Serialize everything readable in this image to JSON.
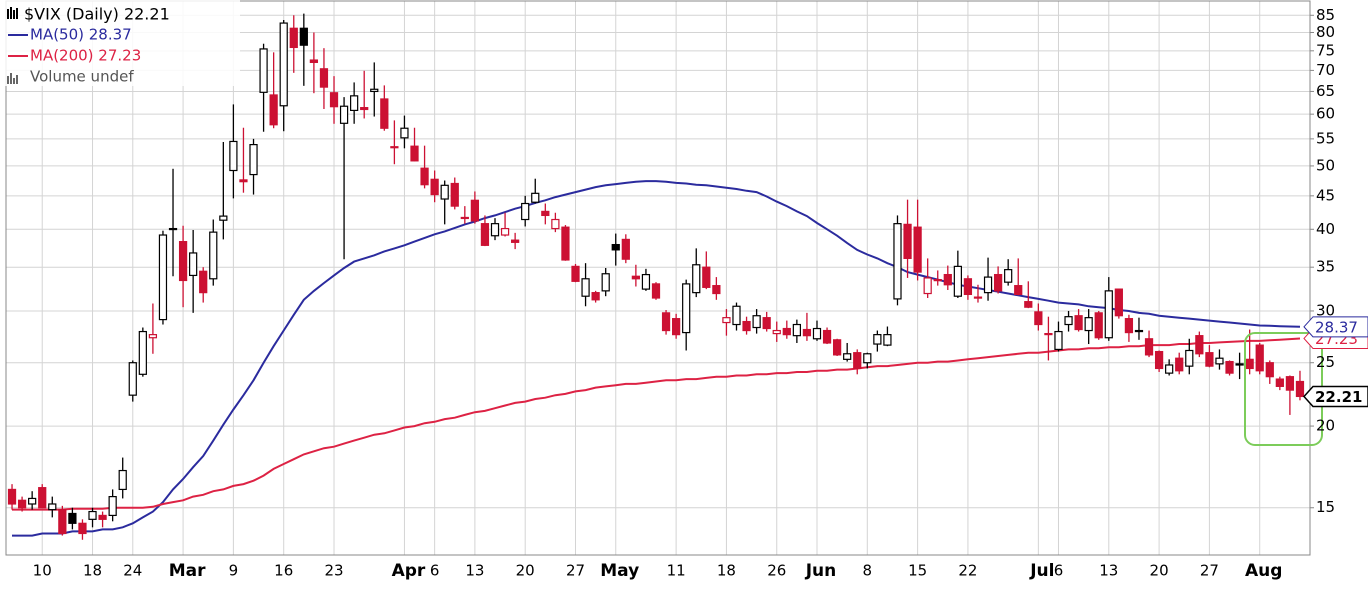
{
  "chart_data": {
    "type": "candlestick",
    "title": "$VIX (Daily) 22.21",
    "volume_label": "Volume undef",
    "log_scale": true,
    "grid": true,
    "legend": "top-left",
    "up_color": "#000000",
    "down_color": "#cc1133",
    "ylim": [
      12.7,
      89.7
    ],
    "yticks": [
      15,
      20,
      25,
      30,
      35,
      40,
      45,
      50,
      55,
      60,
      65,
      70,
      75,
      80,
      85
    ],
    "last_label": "22.21",
    "categories": [
      null,
      null,
      null,
      "10",
      null,
      null,
      null,
      null,
      "18",
      null,
      null,
      null,
      "24",
      null,
      null,
      null,
      null,
      "Mar",
      null,
      null,
      null,
      null,
      "9",
      null,
      null,
      null,
      null,
      "16",
      null,
      null,
      null,
      null,
      "23",
      null,
      null,
      null,
      null,
      null,
      null,
      "Apr",
      null,
      null,
      "6",
      null,
      null,
      null,
      "13",
      null,
      null,
      null,
      null,
      "20",
      null,
      null,
      null,
      null,
      "27",
      null,
      null,
      null,
      "May",
      null,
      null,
      null,
      null,
      null,
      "11",
      null,
      null,
      null,
      null,
      "18",
      null,
      null,
      null,
      null,
      "26",
      null,
      null,
      null,
      "Jun",
      null,
      null,
      null,
      null,
      "8",
      null,
      null,
      null,
      null,
      "15",
      null,
      null,
      null,
      null,
      "22",
      null,
      null,
      null,
      null,
      null,
      null,
      "Jul",
      null,
      "6",
      null,
      null,
      null,
      null,
      "13",
      null,
      null,
      null,
      null,
      "20",
      null,
      null,
      null,
      null,
      "27",
      null,
      null,
      null,
      null,
      "Aug",
      null,
      null,
      null,
      null
    ],
    "ohlc": [
      [
        16.0,
        16.3,
        14.9,
        15.2
      ],
      [
        15.4,
        15.6,
        14.8,
        15.0
      ],
      [
        15.2,
        15.9,
        14.9,
        15.5
      ],
      [
        16.1,
        16.3,
        15.0,
        15.0
      ],
      [
        14.9,
        15.6,
        14.5,
        15.2
      ],
      [
        14.9,
        15.1,
        13.6,
        13.7
      ],
      [
        14.7,
        15.0,
        13.9,
        14.2
      ],
      [
        14.2,
        14.4,
        13.4,
        13.7
      ],
      [
        14.4,
        15.0,
        14.0,
        14.8
      ],
      [
        14.6,
        14.8,
        14.0,
        14.4
      ],
      [
        14.6,
        16.0,
        14.3,
        15.6
      ],
      [
        16.0,
        17.9,
        15.5,
        17.1
      ],
      [
        22.3,
        25.2,
        21.8,
        25.0
      ],
      [
        24.0,
        28.3,
        23.8,
        27.9
      ],
      [
        27.3,
        30.8,
        25.8,
        27.6
      ],
      [
        29.1,
        39.8,
        28.6,
        39.2
      ],
      [
        40.0,
        49.5,
        33.9,
        40.1
      ],
      [
        38.3,
        40.5,
        30.4,
        33.4
      ],
      [
        34.0,
        39.9,
        29.8,
        36.8
      ],
      [
        34.5,
        35.0,
        30.9,
        32.0
      ],
      [
        33.6,
        41.4,
        32.8,
        39.6
      ],
      [
        41.3,
        54.4,
        38.6,
        41.9
      ],
      [
        49.2,
        62.1,
        44.6,
        54.5
      ],
      [
        47.6,
        57.2,
        45.5,
        47.3
      ],
      [
        48.5,
        55.0,
        45.2,
        53.9
      ],
      [
        64.8,
        76.9,
        56.4,
        75.5
      ],
      [
        64.2,
        74.6,
        57.1,
        57.8
      ],
      [
        61.8,
        83.6,
        56.5,
        82.7
      ],
      [
        81.2,
        85.0,
        69.4,
        75.9
      ],
      [
        81.2,
        85.5,
        66.3,
        76.5
      ],
      [
        72.6,
        80.0,
        64.6,
        72.0
      ],
      [
        70.4,
        75.7,
        61.1,
        66.0
      ],
      [
        64.7,
        68.6,
        58.0,
        61.6
      ],
      [
        58.1,
        63.7,
        36.0,
        61.7
      ],
      [
        60.8,
        67.1,
        58.0,
        64.0
      ],
      [
        61.4,
        69.9,
        59.1,
        61.0
      ],
      [
        65.0,
        72.0,
        59.5,
        65.5
      ],
      [
        63.3,
        66.4,
        56.6,
        57.1
      ],
      [
        53.5,
        58.7,
        50.3,
        53.5
      ],
      [
        55.2,
        59.7,
        53.2,
        57.1
      ],
      [
        53.6,
        57.2,
        50.8,
        50.9
      ],
      [
        49.6,
        53.7,
        46.2,
        46.8
      ],
      [
        47.7,
        49.2,
        44.0,
        45.2
      ],
      [
        44.5,
        47.5,
        40.7,
        46.7
      ],
      [
        47.0,
        48.0,
        42.9,
        43.4
      ],
      [
        41.7,
        43.4,
        40.8,
        41.7
      ],
      [
        44.3,
        45.7,
        40.8,
        41.2
      ],
      [
        40.8,
        42.0,
        37.7,
        37.8
      ],
      [
        39.1,
        41.6,
        38.5,
        40.8
      ],
      [
        39.2,
        42.4,
        39.0,
        40.1
      ],
      [
        38.5,
        39.5,
        37.3,
        38.2
      ],
      [
        41.4,
        45.0,
        40.4,
        43.8
      ],
      [
        44.0,
        47.8,
        43.8,
        45.4
      ],
      [
        42.6,
        43.8,
        40.7,
        42.0
      ],
      [
        40.1,
        42.4,
        39.6,
        41.4
      ],
      [
        40.3,
        40.6,
        35.8,
        35.9
      ],
      [
        35.1,
        35.4,
        33.2,
        33.3
      ],
      [
        31.6,
        35.5,
        30.5,
        33.6
      ],
      [
        32.0,
        32.2,
        30.9,
        31.2
      ],
      [
        32.2,
        34.9,
        31.6,
        34.2
      ],
      [
        37.9,
        39.4,
        35.2,
        37.2
      ],
      [
        38.6,
        39.3,
        35.5,
        36.0
      ],
      [
        33.9,
        35.3,
        32.7,
        33.6
      ],
      [
        32.4,
        34.8,
        32.2,
        34.1
      ],
      [
        33.0,
        33.2,
        31.2,
        31.4
      ],
      [
        29.8,
        30.1,
        27.6,
        28.0
      ],
      [
        29.2,
        29.7,
        27.2,
        27.6
      ],
      [
        27.8,
        33.5,
        26.1,
        33.0
      ],
      [
        32.0,
        37.4,
        31.5,
        35.3
      ],
      [
        35.0,
        37.0,
        32.4,
        32.6
      ],
      [
        32.8,
        33.8,
        31.2,
        31.9
      ],
      [
        28.8,
        30.2,
        27.5,
        29.3
      ],
      [
        28.6,
        30.9,
        28.0,
        30.5
      ],
      [
        28.9,
        29.4,
        27.6,
        28.0
      ],
      [
        28.3,
        30.2,
        27.7,
        29.5
      ],
      [
        29.3,
        29.9,
        27.9,
        28.2
      ],
      [
        27.7,
        28.9,
        26.9,
        28.0
      ],
      [
        28.2,
        29.0,
        27.2,
        27.6
      ],
      [
        27.5,
        29.1,
        26.8,
        28.6
      ],
      [
        28.1,
        29.8,
        27.0,
        27.5
      ],
      [
        27.2,
        29.0,
        27.0,
        28.2
      ],
      [
        28.0,
        28.3,
        26.7,
        26.8
      ],
      [
        27.1,
        27.2,
        25.6,
        25.7
      ],
      [
        25.3,
        26.8,
        25.1,
        25.8
      ],
      [
        25.9,
        26.2,
        24.0,
        24.5
      ],
      [
        25.0,
        25.9,
        24.5,
        25.8
      ],
      [
        26.7,
        28.0,
        26.0,
        27.6
      ],
      [
        26.6,
        28.4,
        26.5,
        27.6
      ],
      [
        31.3,
        42.0,
        30.6,
        40.8
      ],
      [
        40.7,
        44.4,
        33.7,
        36.1
      ],
      [
        40.3,
        44.4,
        33.4,
        34.4
      ],
      [
        31.9,
        36.1,
        31.4,
        33.7
      ],
      [
        33.4,
        34.6,
        32.8,
        33.5
      ],
      [
        34.1,
        35.2,
        32.3,
        32.9
      ],
      [
        31.6,
        37.1,
        31.4,
        35.1
      ],
      [
        33.6,
        34.0,
        31.2,
        31.8
      ],
      [
        31.5,
        32.9,
        30.9,
        31.4
      ],
      [
        32.0,
        36.2,
        31.1,
        33.8
      ],
      [
        34.1,
        35.1,
        31.9,
        32.2
      ],
      [
        33.2,
        36.0,
        32.8,
        34.7
      ],
      [
        32.8,
        36.1,
        31.7,
        31.8
      ],
      [
        31.0,
        33.3,
        30.3,
        30.4
      ],
      [
        29.9,
        30.8,
        28.0,
        28.6
      ],
      [
        27.7,
        29.4,
        25.2,
        27.7
      ],
      [
        26.2,
        28.9,
        26.0,
        27.9
      ],
      [
        28.6,
        30.0,
        27.9,
        29.4
      ],
      [
        29.5,
        30.2,
        27.9,
        28.1
      ],
      [
        28.0,
        30.2,
        26.7,
        29.3
      ],
      [
        29.8,
        30.0,
        27.1,
        27.3
      ],
      [
        27.3,
        33.8,
        27.0,
        32.2
      ],
      [
        32.4,
        32.4,
        29.2,
        29.5
      ],
      [
        29.2,
        29.6,
        26.9,
        27.8
      ],
      [
        27.9,
        29.3,
        27.1,
        28.0
      ],
      [
        27.2,
        28.0,
        25.5,
        25.7
      ],
      [
        26.0,
        26.1,
        24.2,
        24.5
      ],
      [
        24.1,
        25.3,
        23.9,
        24.8
      ],
      [
        25.4,
        25.9,
        24.0,
        24.3
      ],
      [
        24.7,
        27.2,
        24.0,
        26.1
      ],
      [
        27.5,
        27.9,
        25.5,
        25.8
      ],
      [
        25.9,
        26.6,
        24.6,
        24.7
      ],
      [
        24.9,
        26.2,
        24.4,
        25.4
      ],
      [
        25.1,
        25.2,
        23.9,
        24.1
      ],
      [
        24.9,
        25.9,
        23.6,
        24.8
      ],
      [
        25.3,
        28.1,
        24.0,
        24.5
      ],
      [
        26.6,
        26.8,
        24.0,
        24.3
      ],
      [
        25.0,
        25.2,
        23.2,
        23.8
      ],
      [
        23.6,
        23.8,
        22.7,
        23.0
      ],
      [
        23.8,
        23.9,
        20.8,
        22.7
      ],
      [
        23.4,
        24.3,
        21.9,
        22.2
      ]
    ],
    "series": [
      {
        "name": "MA(50) 28.37",
        "color": "#2b2b9e",
        "end_label": "28.37",
        "values": [
          13.6,
          13.6,
          13.6,
          13.7,
          13.7,
          13.7,
          13.8,
          13.8,
          13.8,
          13.9,
          13.9,
          14.0,
          14.2,
          14.5,
          14.8,
          15.3,
          16.0,
          16.6,
          17.3,
          18.0,
          19.0,
          20.1,
          21.2,
          22.3,
          23.5,
          25.0,
          26.5,
          28.0,
          29.6,
          31.2,
          32.2,
          33.1,
          34.0,
          34.9,
          35.7,
          36.1,
          36.5,
          37.0,
          37.4,
          37.8,
          38.3,
          38.8,
          39.3,
          39.7,
          40.2,
          40.7,
          41.1,
          41.6,
          42.0,
          42.5,
          43.0,
          43.4,
          43.9,
          44.3,
          44.8,
          45.2,
          45.6,
          46.0,
          46.4,
          46.7,
          46.9,
          47.1,
          47.3,
          47.4,
          47.4,
          47.3,
          47.1,
          47.0,
          46.8,
          46.7,
          46.5,
          46.3,
          46.1,
          45.8,
          45.6,
          44.9,
          44.1,
          43.4,
          42.6,
          41.9,
          40.9,
          40.0,
          39.1,
          38.1,
          37.2,
          36.6,
          36.1,
          35.5,
          35.0,
          34.4,
          34.1,
          33.8,
          33.5,
          33.2,
          32.9,
          32.7,
          32.5,
          32.3,
          32.1,
          31.9,
          31.7,
          31.5,
          31.3,
          31.1,
          30.9,
          30.8,
          30.7,
          30.5,
          30.4,
          30.3,
          30.1,
          30.0,
          29.8,
          29.7,
          29.5,
          29.4,
          29.3,
          29.2,
          29.1,
          29.0,
          28.9,
          28.8,
          28.7,
          28.6,
          28.5,
          28.47,
          28.43,
          28.4,
          28.37
        ]
      },
      {
        "name": "MA(200) 27.23",
        "color": "#dd2244",
        "end_label": "27.23",
        "values": [
          14.9,
          14.9,
          14.9,
          14.9,
          14.9,
          14.9,
          14.95,
          14.95,
          14.95,
          14.95,
          15.0,
          15.0,
          15.0,
          15.0,
          15.05,
          15.2,
          15.3,
          15.4,
          15.6,
          15.7,
          15.9,
          16.0,
          16.2,
          16.3,
          16.5,
          16.8,
          17.2,
          17.5,
          17.8,
          18.1,
          18.3,
          18.5,
          18.6,
          18.8,
          19.0,
          19.2,
          19.4,
          19.5,
          19.7,
          19.9,
          20.0,
          20.2,
          20.3,
          20.5,
          20.6,
          20.8,
          21.0,
          21.1,
          21.3,
          21.5,
          21.7,
          21.8,
          22.0,
          22.1,
          22.3,
          22.4,
          22.6,
          22.7,
          22.9,
          23.0,
          23.1,
          23.2,
          23.2,
          23.3,
          23.4,
          23.5,
          23.5,
          23.6,
          23.6,
          23.7,
          23.8,
          23.8,
          23.9,
          23.9,
          24.0,
          24.0,
          24.1,
          24.1,
          24.2,
          24.2,
          24.3,
          24.3,
          24.4,
          24.4,
          24.5,
          24.6,
          24.7,
          24.7,
          24.8,
          24.9,
          25.0,
          25.0,
          25.1,
          25.1,
          25.2,
          25.3,
          25.4,
          25.5,
          25.6,
          25.7,
          25.8,
          25.9,
          25.9,
          26.0,
          26.1,
          26.2,
          26.2,
          26.3,
          26.3,
          26.4,
          26.4,
          26.5,
          26.5,
          26.6,
          26.6,
          26.6,
          26.7,
          26.7,
          26.8,
          26.8,
          26.85,
          26.9,
          26.95,
          27.0,
          27.0,
          27.05,
          27.1,
          27.17,
          27.23
        ]
      }
    ]
  }
}
